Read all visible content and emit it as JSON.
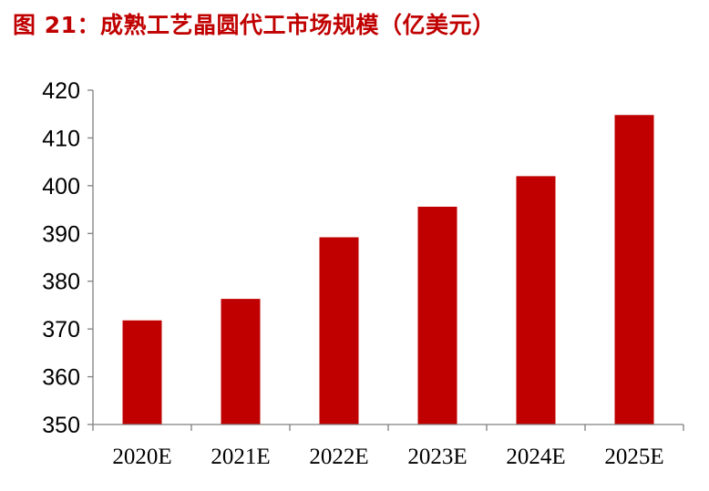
{
  "figure": {
    "label": "图 21：",
    "title": "成熟工艺晶圆代工市场规模（亿美元）"
  },
  "colors": {
    "bar": "#c00000",
    "axis": "#808080",
    "title": "#c00000"
  },
  "chart_data": {
    "type": "bar",
    "title": "成熟工艺晶圆代工市场规模（亿美元）",
    "xlabel": "",
    "ylabel": "",
    "categories": [
      "2020E",
      "2021E",
      "2022E",
      "2023E",
      "2024E",
      "2025E"
    ],
    "values": [
      371.8,
      376.3,
      389.2,
      395.6,
      402,
      414.8
    ],
    "ylim": [
      350,
      420
    ],
    "yticks": [
      350,
      360,
      370,
      380,
      390,
      400,
      410,
      420
    ],
    "grid": false,
    "legend": "none"
  }
}
